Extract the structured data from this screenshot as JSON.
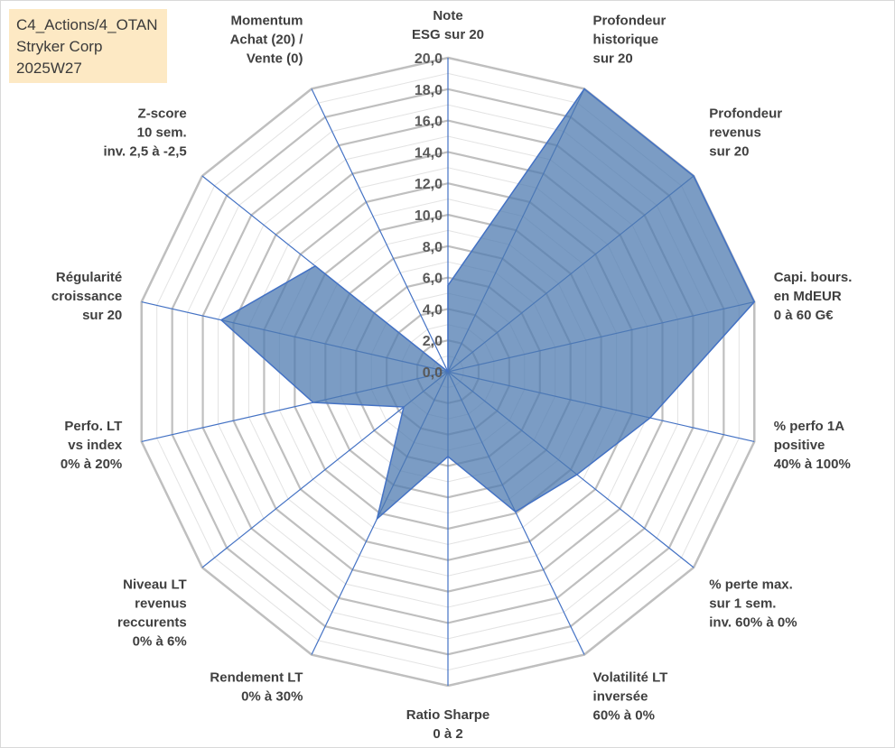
{
  "info_box": {
    "line1": "C4_Actions/4_OTAN",
    "line2": "Stryker Corp",
    "line3": "2025W27"
  },
  "chart_data": {
    "type": "radar",
    "rmin": 0,
    "rmax": 20,
    "ticks": [
      "0,0",
      "2,0",
      "4,0",
      "6,0",
      "8,0",
      "10,0",
      "12,0",
      "14,0",
      "16,0",
      "18,0",
      "20,0"
    ],
    "axes": [
      [
        "Note",
        "ESG sur 20"
      ],
      [
        "Profondeur",
        "historique",
        "sur 20"
      ],
      [
        "Profondeur",
        "revenus",
        "sur 20"
      ],
      [
        "Capi. bours.",
        "en MdEUR",
        "0 à 60 G€"
      ],
      [
        "% perfo 1A",
        "positive",
        "40% à 100%"
      ],
      [
        "% perte max.",
        "sur 1 sem.",
        "inv. 60% à 0%"
      ],
      [
        "Volatilité LT",
        "inversée",
        "60% à 0%"
      ],
      [
        "Ratio Sharpe",
        "0 à 2"
      ],
      [
        "Rendement LT",
        "0% à 30%"
      ],
      [
        "Niveau LT",
        "revenus",
        "reccurents",
        "0% à 6%"
      ],
      [
        "Perfo. LT",
        "vs index",
        "0% à 20%"
      ],
      [
        "Régularité",
        "croissance",
        "sur 20"
      ],
      [
        "Z-score",
        "10 sem.",
        "inv. 2,5 à -2,5"
      ],
      [
        "Momentum",
        "Achat (20) /",
        "Vente (0)"
      ]
    ],
    "values": [
      5.5,
      20,
      20,
      20,
      13.2,
      10.5,
      9.9,
      5.4,
      10.4,
      3.6,
      8.8,
      14.8,
      10.8,
      0
    ],
    "colors": {
      "fill": "#4f7bb0",
      "stroke": "#4472c4",
      "grid": "#c0c0c0",
      "spoke": "#4472c4"
    }
  }
}
